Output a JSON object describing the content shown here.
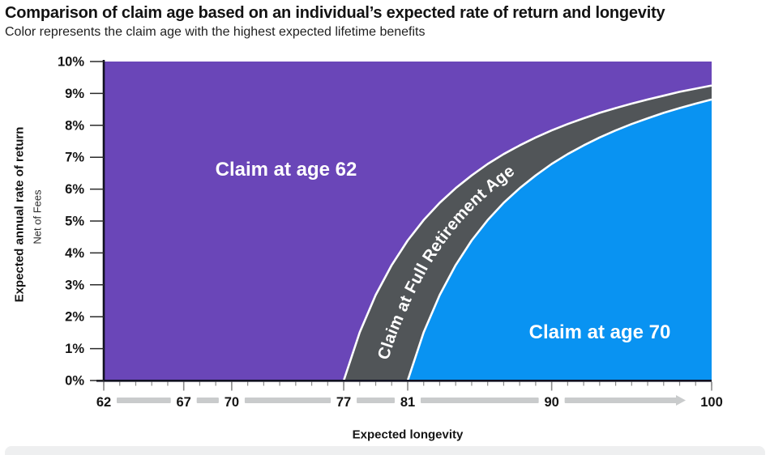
{
  "header": {
    "title": "Comparison of claim age based on an individual’s expected rate of return and longevity",
    "subtitle": "Color represents the claim age with the highest expected lifetime benefits"
  },
  "chart_data": {
    "type": "area",
    "title": "Comparison of claim age based on an individual’s expected rate of return and longevity",
    "xlabel": "Expected longevity",
    "ylabel": "Expected annual rate of return",
    "ylabel_note": "Net of Fees",
    "xlim": [
      62,
      100
    ],
    "ylim": [
      0,
      10
    ],
    "x_ticks_labeled": [
      62,
      67,
      70,
      77,
      81,
      90,
      100
    ],
    "x_minor_tick_step": 1,
    "y_tick_labels": [
      "0%",
      "1%",
      "2%",
      "3%",
      "4%",
      "5%",
      "6%",
      "7%",
      "8%",
      "9%",
      "10%"
    ],
    "legend": "none",
    "grid": false,
    "regions": [
      {
        "id": "claim-62",
        "label": "Claim at age 62",
        "color": "#6A46B8"
      },
      {
        "id": "claim-fra",
        "label": "Claim at Full Retirement Age",
        "color": "#515558"
      },
      {
        "id": "claim-70",
        "label": "Claim at age 70",
        "color": "#0993F2"
      }
    ],
    "boundaries": {
      "claim62_vs_fra": {
        "description": "breakeven rate of return between claiming at 62 and at Full Retirement Age",
        "ages": [
          77,
          78,
          79,
          80,
          81,
          82,
          83,
          84,
          85,
          86,
          87,
          88,
          89,
          90,
          91,
          92,
          93,
          94,
          95,
          96,
          97,
          98,
          99,
          100
        ],
        "rates": [
          0,
          1.51,
          2.68,
          3.62,
          4.39,
          5.03,
          5.57,
          6.03,
          6.43,
          6.79,
          7.1,
          7.37,
          7.62,
          7.84,
          8.04,
          8.22,
          8.39,
          8.54,
          8.68,
          8.81,
          8.93,
          9.05,
          9.15,
          9.25
        ]
      },
      "fra_vs_claim70": {
        "description": "breakeven rate of return between claiming at Full Retirement Age and at 70",
        "ages": [
          81,
          82,
          83,
          84,
          85,
          86,
          87,
          88,
          89,
          90,
          91,
          92,
          93,
          94,
          95,
          96,
          97,
          98,
          99,
          100
        ],
        "rates": [
          0,
          1.51,
          2.68,
          3.62,
          4.39,
          5.03,
          5.57,
          6.03,
          6.43,
          6.79,
          7.1,
          7.37,
          7.62,
          7.84,
          8.04,
          8.22,
          8.39,
          8.54,
          8.68,
          8.81
        ]
      }
    },
    "palette": {
      "separator": "#ffffff",
      "axis": "#101020",
      "tick": "#8a8a8a",
      "y_tick": "#2a2a2a",
      "connector": "#c9cbcc",
      "text": "#141414",
      "footer_divider": "#eeeff0"
    }
  }
}
